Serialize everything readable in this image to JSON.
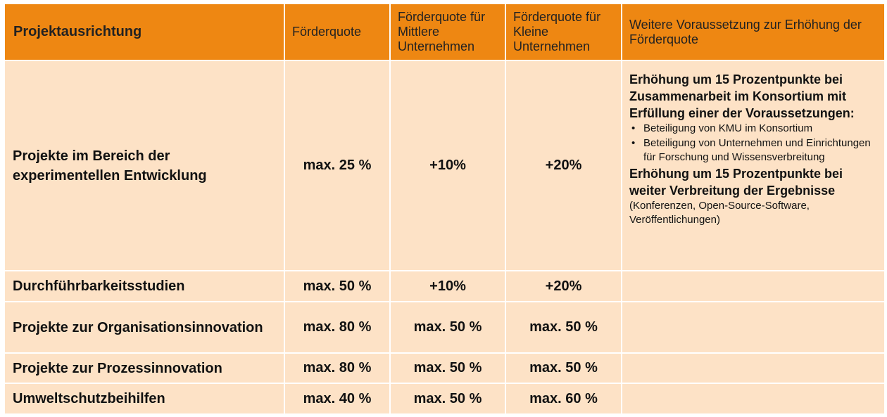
{
  "colors": {
    "header_bg": "#ee8712",
    "row_bg": "#fde2c6",
    "border": "#ffffff"
  },
  "headers": [
    "Projektausrichtung",
    "Förderquote",
    "Förderquote für Mittlere Unternehmen",
    "Förderquote für Kleine Unternehmen",
    "Weitere Voraussetzung zur Erhöhung der Förderquote"
  ],
  "rows": [
    {
      "name": "Projekte im Bereich der experimentellen Entwicklung",
      "quote": "max. 25 %",
      "mittlere": "+10%",
      "kleine": "+20%"
    },
    {
      "name": "Durchführbarkeitsstudien",
      "quote": "max. 50 %",
      "mittlere": "+10%",
      "kleine": "+20%"
    },
    {
      "name": "Projekte zur Organisationsinnovation",
      "quote": "max. 80 %",
      "mittlere": "max. 50 %",
      "kleine": "max. 50 %"
    },
    {
      "name": "Projekte zur Prozessinnovation",
      "quote": "max. 80 %",
      "mittlere": "max. 50 %",
      "kleine": "max. 50 %"
    },
    {
      "name": "Umweltschutzbeihilfen",
      "quote": "max. 40 %",
      "mittlere": "max. 50 %",
      "kleine": "max. 60 %"
    }
  ],
  "note": {
    "heading1": "Erhöhung um 15 Prozentpunkte bei Zusammenarbeit im Konsortium mit Erfüllung einer der Voraussetzungen:",
    "bullet_symbol": "•",
    "bullets": [
      "Beteiligung von KMU im Konsortium",
      "Beteiligung von Unternehmen und Einrichtungen für Forschung und Wissensverbreitung"
    ],
    "heading2": "Erhöhung um 15 Prozentpunkte bei weiter Verbreitung der Ergebnisse",
    "detail": "(Konferenzen, Open-Source-Software, Veröffentlichungen)"
  }
}
